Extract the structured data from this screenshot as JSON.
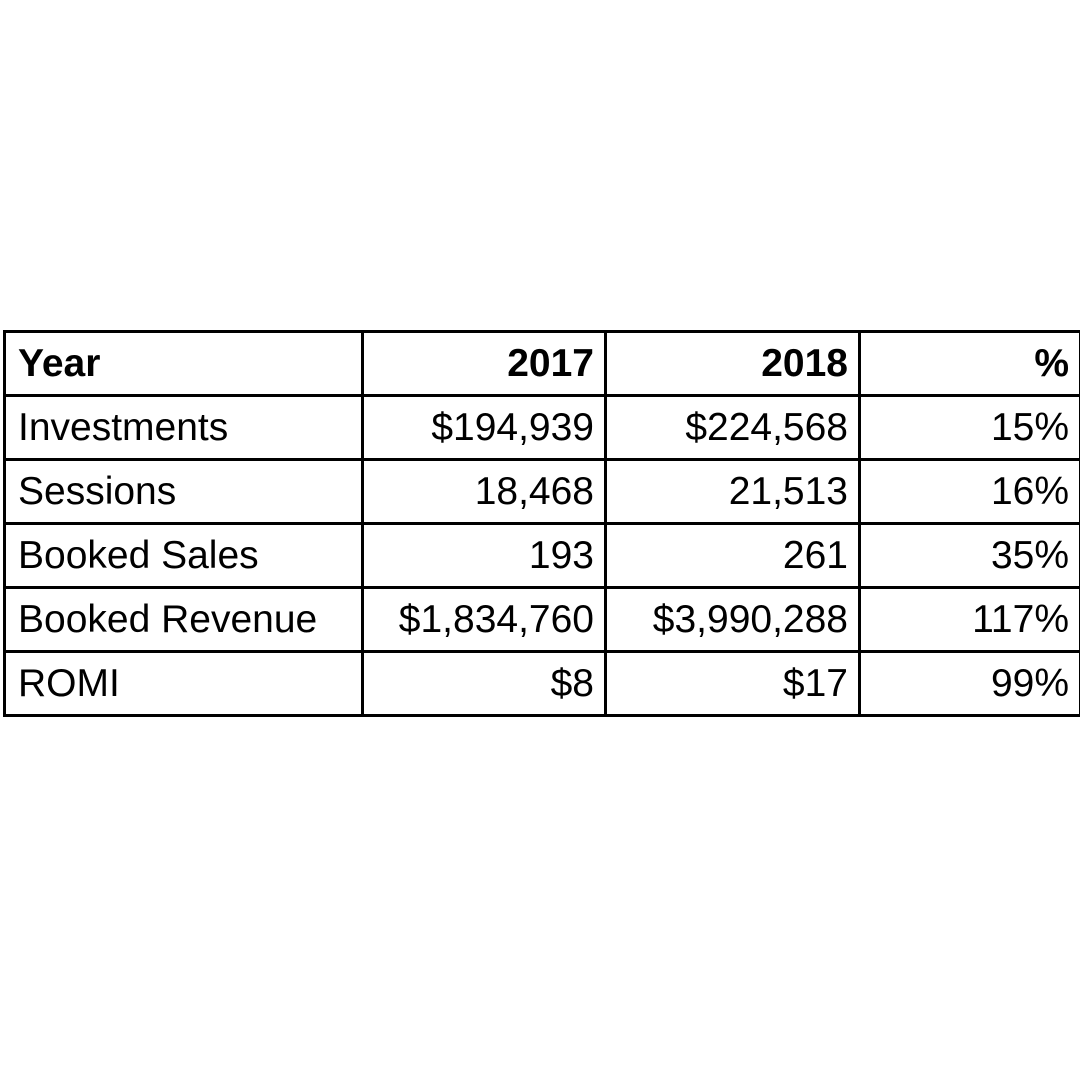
{
  "table": {
    "header": {
      "label": "Year",
      "col_2017": "2017",
      "col_2018": "2018",
      "col_pct": "%"
    },
    "rows": [
      {
        "label": "Investments",
        "v2017": "$194,939",
        "v2018": "$224,568",
        "pct": "15%"
      },
      {
        "label": "Sessions",
        "v2017": "18,468",
        "v2018": "21,513",
        "pct": "16%"
      },
      {
        "label": "Booked Sales",
        "v2017": "193",
        "v2018": "261",
        "pct": "35%"
      },
      {
        "label": "Booked Revenue",
        "v2017": "$1,834,760",
        "v2018": "$3,990,288",
        "pct": "117%"
      },
      {
        "label": "ROMI",
        "v2017": "$8",
        "v2018": "$17",
        "pct": "99%"
      }
    ]
  }
}
